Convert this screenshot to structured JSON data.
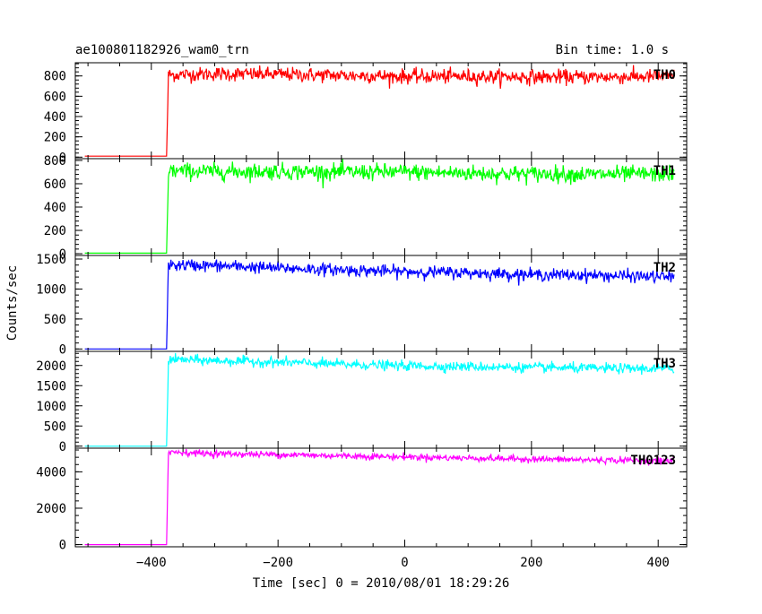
{
  "chart_data": {
    "type": "line",
    "title": "ae100801182926_wam0_trn",
    "subtitle": "Bin time: 1.0 s",
    "xlabel": "Time [sec] 0 = 2010/08/01 18:29:26",
    "ylabel": "Counts/sec",
    "xlim": [
      -520,
      445
    ],
    "x_ticks": [
      -400,
      -200,
      0,
      200,
      400
    ],
    "x_tick_labels": [
      "−400",
      "−200",
      "0",
      "200",
      "400"
    ],
    "step_time": -375,
    "data_start": -505,
    "data_end": 425,
    "grid": false,
    "panels": [
      {
        "name": "TH0",
        "color": "#ff0000",
        "ylim": [
          -15,
          930
        ],
        "yticks": [
          0,
          200,
          400,
          600,
          800
        ],
        "points": [
          [
            -505,
            10
          ],
          [
            -376,
            10
          ],
          [
            -373,
            810
          ],
          [
            -300,
            820
          ],
          [
            -200,
            815
          ],
          [
            -100,
            805
          ],
          [
            0,
            795
          ],
          [
            100,
            795
          ],
          [
            200,
            790
          ],
          [
            300,
            790
          ],
          [
            425,
            795
          ]
        ],
        "noise": 35
      },
      {
        "name": "TH1",
        "color": "#00ff00",
        "ylim": [
          -15,
          815
        ],
        "yticks": [
          0,
          200,
          400,
          600,
          800
        ],
        "points": [
          [
            -505,
            5
          ],
          [
            -376,
            5
          ],
          [
            -373,
            710
          ],
          [
            -300,
            705
          ],
          [
            -200,
            705
          ],
          [
            -100,
            700
          ],
          [
            0,
            700
          ],
          [
            100,
            690
          ],
          [
            200,
            685
          ],
          [
            300,
            680
          ],
          [
            425,
            685
          ]
        ],
        "noise": 35
      },
      {
        "name": "TH2",
        "color": "#0000ff",
        "ylim": [
          -40,
          1560
        ],
        "yticks": [
          0,
          500,
          1000,
          1500
        ],
        "points": [
          [
            -505,
            0
          ],
          [
            -376,
            0
          ],
          [
            -373,
            1400
          ],
          [
            -300,
            1390
          ],
          [
            -200,
            1350
          ],
          [
            -100,
            1320
          ],
          [
            0,
            1290
          ],
          [
            100,
            1270
          ],
          [
            200,
            1240
          ],
          [
            300,
            1230
          ],
          [
            425,
            1200
          ]
        ],
        "noise": 50
      },
      {
        "name": "TH3",
        "color": "#00ffff",
        "ylim": [
          -50,
          2350
        ],
        "yticks": [
          0,
          500,
          1000,
          1500,
          2000
        ],
        "points": [
          [
            -505,
            0
          ],
          [
            -376,
            0
          ],
          [
            -373,
            2150
          ],
          [
            -300,
            2120
          ],
          [
            -200,
            2080
          ],
          [
            -100,
            2030
          ],
          [
            0,
            1990
          ],
          [
            100,
            1970
          ],
          [
            200,
            1950
          ],
          [
            300,
            1930
          ],
          [
            425,
            1920
          ]
        ],
        "noise": 60
      },
      {
        "name": "TH0123",
        "color": "#ff00ff",
        "ylim": [
          -120,
          5300
        ],
        "yticks": [
          0,
          2000,
          4000
        ],
        "points": [
          [
            -505,
            0
          ],
          [
            -376,
            0
          ],
          [
            -373,
            5100
          ],
          [
            -300,
            5000
          ],
          [
            -200,
            4950
          ],
          [
            -100,
            4880
          ],
          [
            0,
            4820
          ],
          [
            100,
            4760
          ],
          [
            200,
            4700
          ],
          [
            300,
            4650
          ],
          [
            425,
            4600
          ]
        ],
        "noise": 90
      }
    ]
  }
}
